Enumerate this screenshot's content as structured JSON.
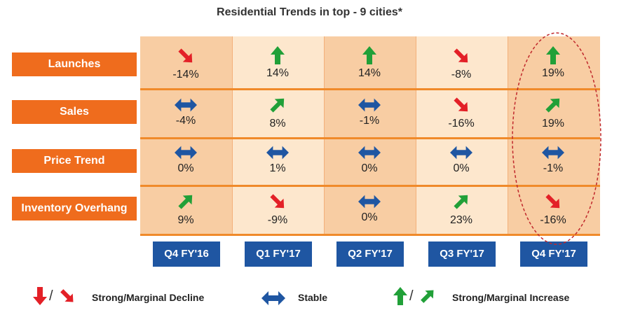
{
  "title": "Residential Trends in top - 9 cities*",
  "chart_data": {
    "type": "table",
    "title": "Residential Trends in top - 9 cities*",
    "columns": [
      "Q4 FY'16",
      "Q1 FY'17",
      "Q2 FY'17",
      "Q3 FY'17",
      "Q4 FY'17"
    ],
    "rows": [
      {
        "label": "Launches",
        "values": [
          "-14%",
          "14%",
          "14%",
          "-8%",
          "19%"
        ],
        "trends": [
          "marginal-decline",
          "strong-increase",
          "strong-increase",
          "marginal-decline",
          "strong-increase"
        ]
      },
      {
        "label": "Sales",
        "values": [
          "-4%",
          "8%",
          "-1%",
          "-16%",
          "19%"
        ],
        "trends": [
          "stable",
          "marginal-increase",
          "stable",
          "marginal-decline",
          "marginal-increase"
        ]
      },
      {
        "label": "Price Trend",
        "values": [
          "0%",
          "1%",
          "0%",
          "0%",
          "-1%"
        ],
        "trends": [
          "stable",
          "stable",
          "stable",
          "stable",
          "stable"
        ]
      },
      {
        "label": "Inventory Overhang",
        "values": [
          "9%",
          "-9%",
          "0%",
          "23%",
          "-16%"
        ],
        "trends": [
          "marginal-increase",
          "marginal-decline",
          "stable",
          "marginal-increase",
          "marginal-decline"
        ]
      }
    ],
    "highlighted_column": "Q4 FY'17"
  },
  "legend": {
    "decline_label": "Strong/Marginal Decline",
    "stable_label": "Stable",
    "increase_label": "Strong/Marginal Increase",
    "separator": "/"
  },
  "colors": {
    "decline": "#e32027",
    "increase": "#21a038",
    "stable": "#1f56a2",
    "label_bg": "#ef6c1d",
    "quarter_bg": "#1f56a2",
    "highlight_ellipse": "#c0282c"
  }
}
